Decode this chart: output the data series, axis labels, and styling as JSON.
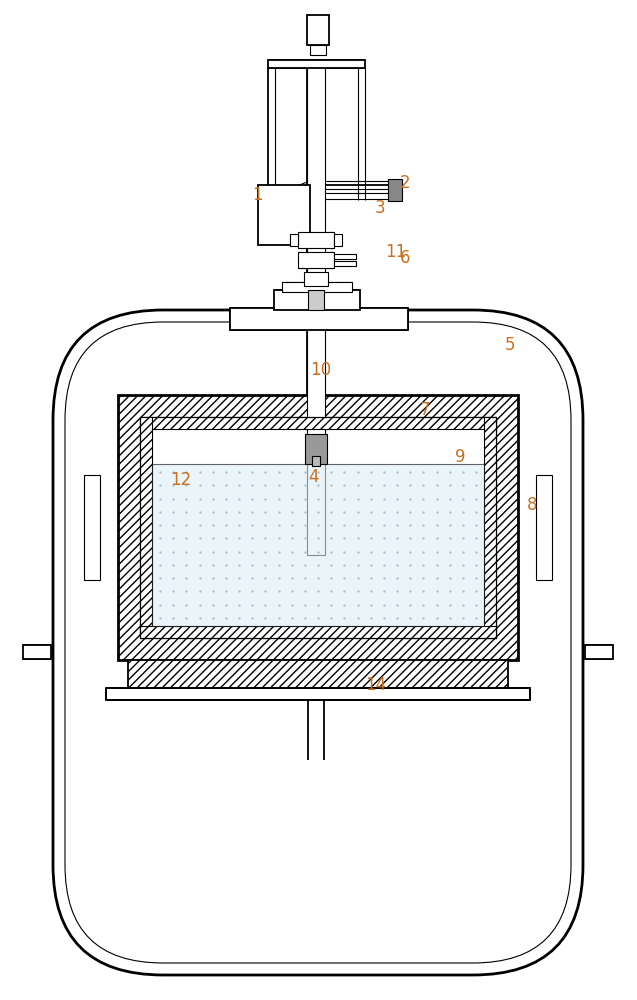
{
  "fig_width": 6.37,
  "fig_height": 10.0,
  "bg_color": "#ffffff",
  "line_color": "#000000",
  "label_color": "#c87020",
  "liquid_color": "#ddeef5"
}
